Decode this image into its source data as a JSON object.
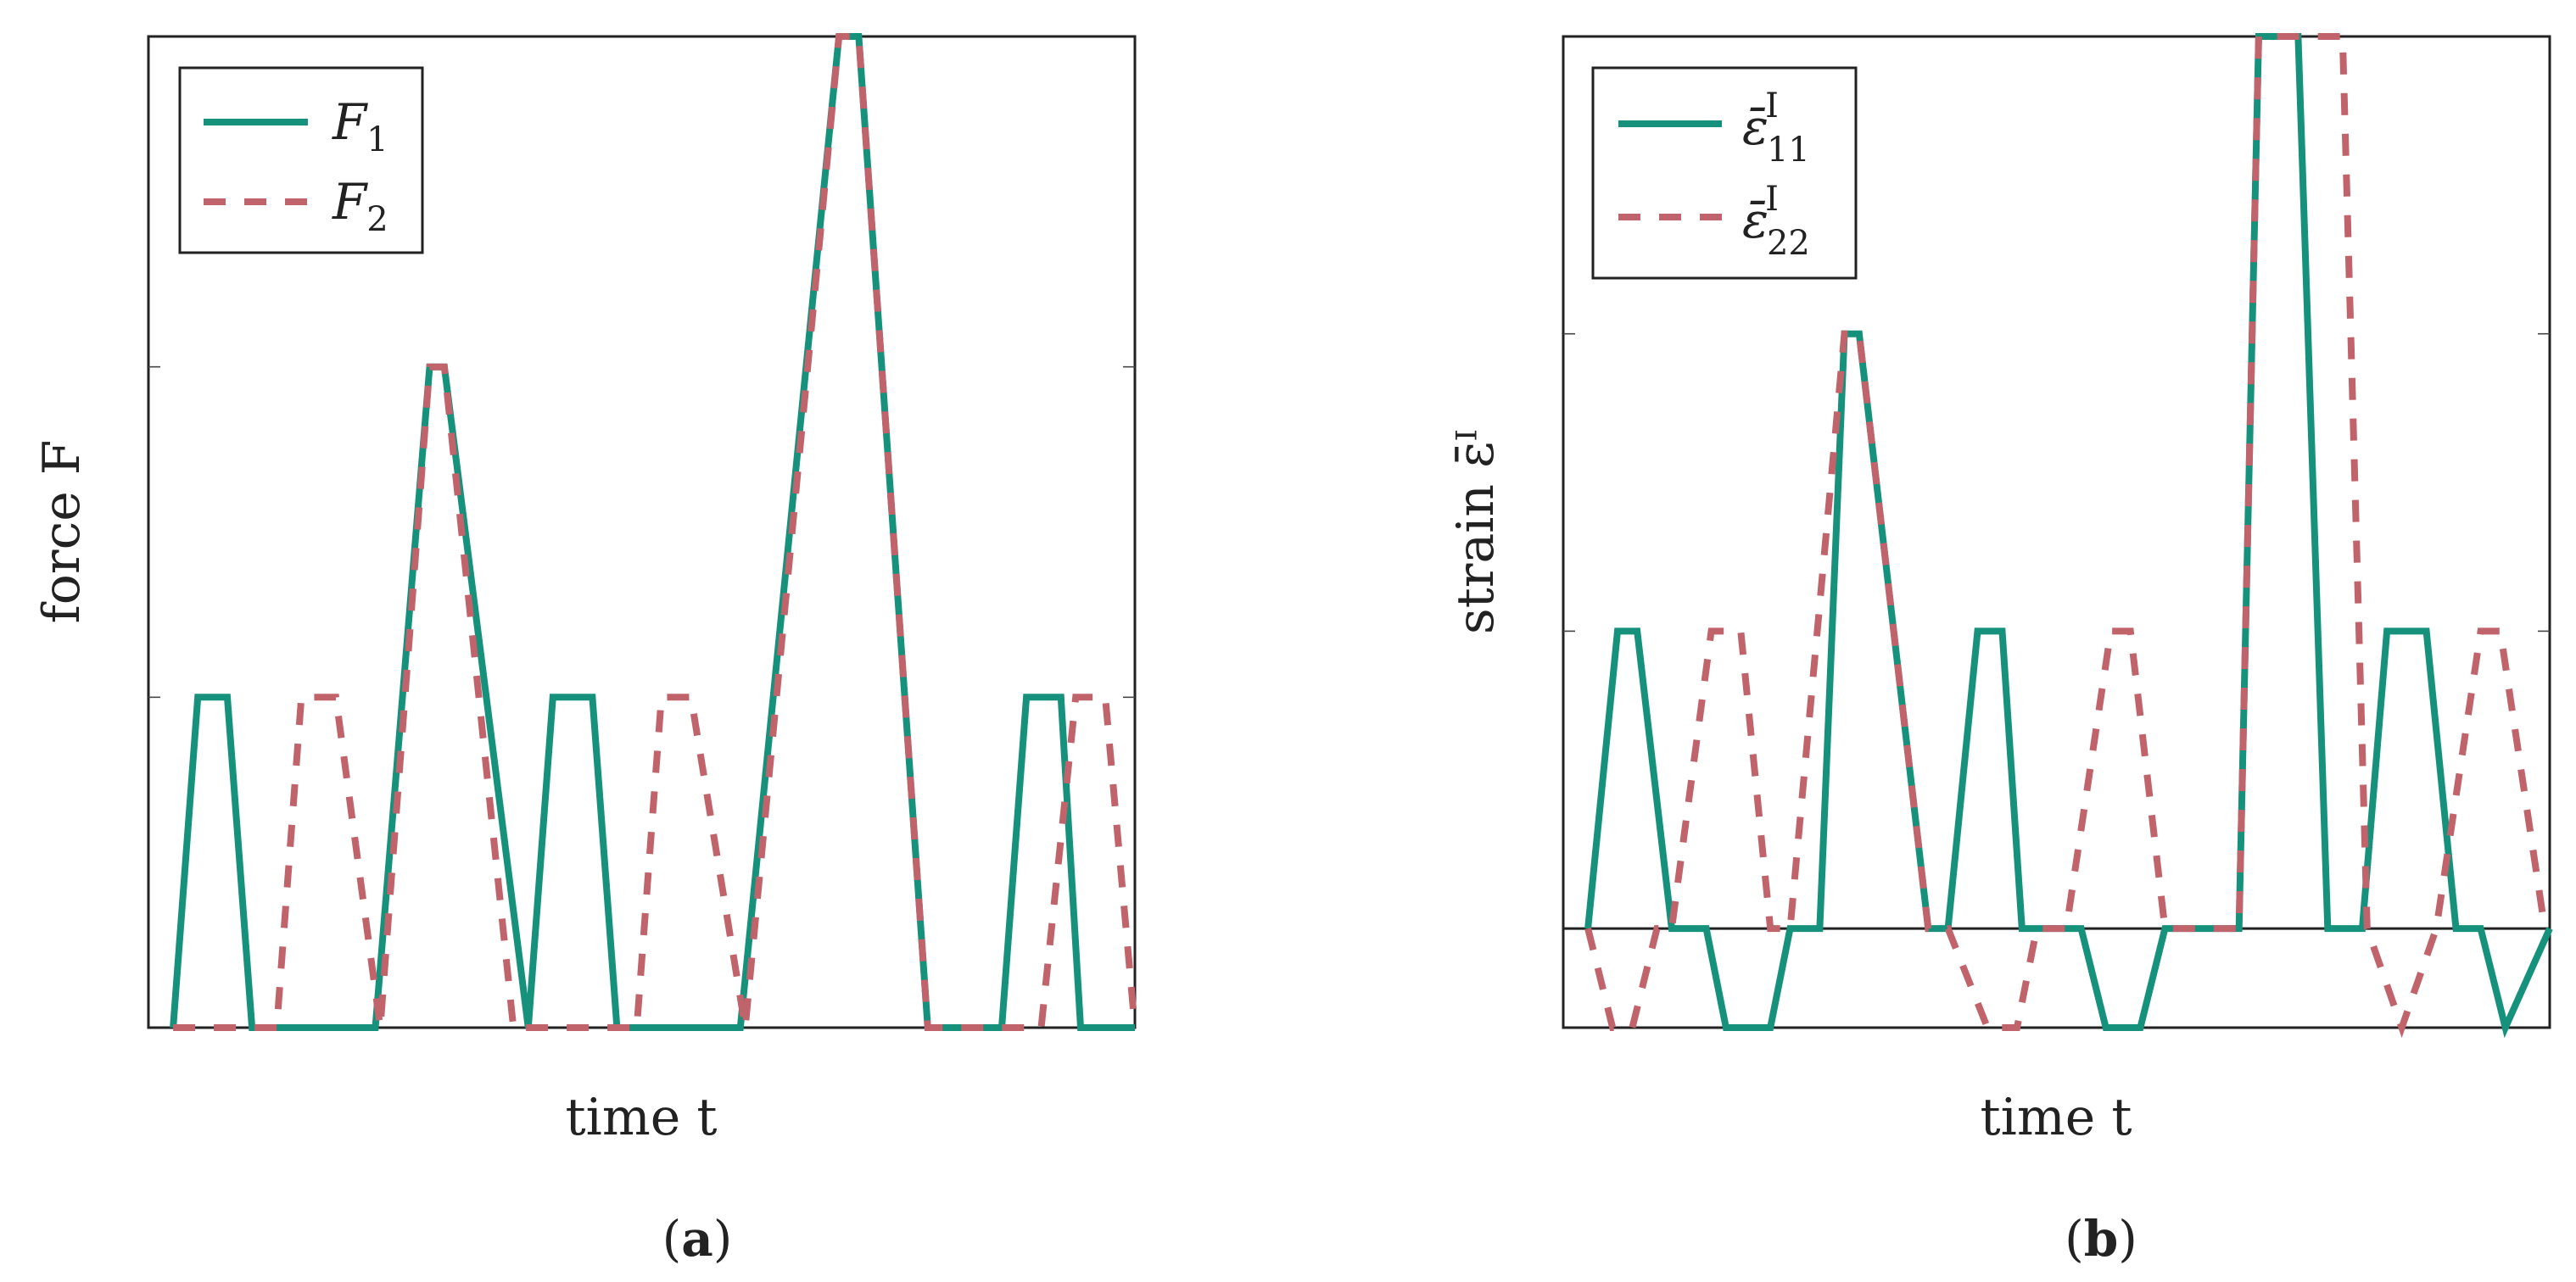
{
  "colors": {
    "series1": "#16917c",
    "series2": "#c0636b",
    "axis": "#222222"
  },
  "chart_data": [
    {
      "type": "line",
      "panel_label": "a",
      "xlabel": "time t",
      "ylabel": "force F",
      "xlim": [
        0,
        100
      ],
      "ylim": [
        0,
        3
      ],
      "yticks": [
        1,
        2
      ],
      "xticks": [],
      "grid": false,
      "legend_position": "top-left",
      "series": [
        {
          "name": "F",
          "name_sub": "1",
          "style": "solid",
          "x": [
            2.5,
            5,
            8,
            10.5,
            23,
            28.5,
            30,
            38.5,
            41,
            45,
            47.5,
            60,
            70,
            72,
            79,
            86.5,
            89,
            92.5,
            94.5,
            100
          ],
          "y": [
            0,
            1,
            1,
            0,
            0,
            2,
            2,
            0,
            1,
            1,
            0,
            0,
            3,
            3,
            0,
            0,
            1,
            1,
            0,
            0
          ]
        },
        {
          "name": "F",
          "name_sub": "2",
          "style": "dashed",
          "x": [
            2.5,
            13,
            15.5,
            19,
            23.5,
            28.5,
            30,
            37,
            49.5,
            52,
            55,
            60.5,
            70,
            72,
            79,
            90.5,
            94,
            97,
            100
          ],
          "y": [
            0,
            0,
            1,
            1,
            0,
            2,
            2,
            0,
            0,
            1,
            1,
            0,
            3,
            3,
            0,
            0,
            1,
            1,
            0
          ]
        }
      ]
    },
    {
      "type": "line",
      "panel_label": "b",
      "xlabel": "time t",
      "ylabel": "strain ε̄ᴵ",
      "xlim": [
        0,
        100
      ],
      "ylim": [
        -1,
        9
      ],
      "yticks": [
        0,
        3,
        6
      ],
      "xticks": [],
      "grid": false,
      "legend_position": "top-left",
      "series": [
        {
          "name": "ε̄",
          "name_sup": "I",
          "name_sub": "11",
          "style": "solid",
          "x": [
            2.5,
            5.5,
            7.5,
            11,
            14.5,
            16.5,
            21,
            23,
            26,
            28.5,
            30,
            37,
            39,
            42,
            44.5,
            46.5,
            52.5,
            55,
            58.5,
            61,
            68.5,
            70.5,
            74.5,
            77.5,
            81,
            83.5,
            87.5,
            90.5,
            93,
            95.5,
            100
          ],
          "y": [
            0,
            3,
            3,
            0,
            0,
            -1,
            -1,
            0,
            0,
            6,
            6,
            0,
            0,
            3,
            3,
            0,
            0,
            -1,
            -1,
            0,
            0,
            9,
            9,
            0,
            0,
            3,
            3,
            0,
            0,
            -1,
            0
          ]
        },
        {
          "name": "ε̄",
          "name_sup": "I",
          "name_sub": "22",
          "style": "dashed",
          "x": [
            2.5,
            5,
            7,
            9.5,
            11,
            15,
            18,
            21,
            23,
            28.5,
            30,
            37,
            39,
            43,
            46,
            48,
            51,
            55.5,
            57.5,
            61,
            68.5,
            70.5,
            79,
            81.5,
            85,
            88.5,
            93,
            95,
            99.5
          ],
          "y": [
            0,
            -1,
            -1,
            0,
            0,
            3,
            3,
            0,
            0,
            6,
            6,
            0,
            0,
            -1,
            -1,
            0,
            0,
            3,
            3,
            0,
            0,
            9,
            9,
            0,
            -1,
            0,
            3,
            3,
            0
          ]
        }
      ]
    }
  ]
}
